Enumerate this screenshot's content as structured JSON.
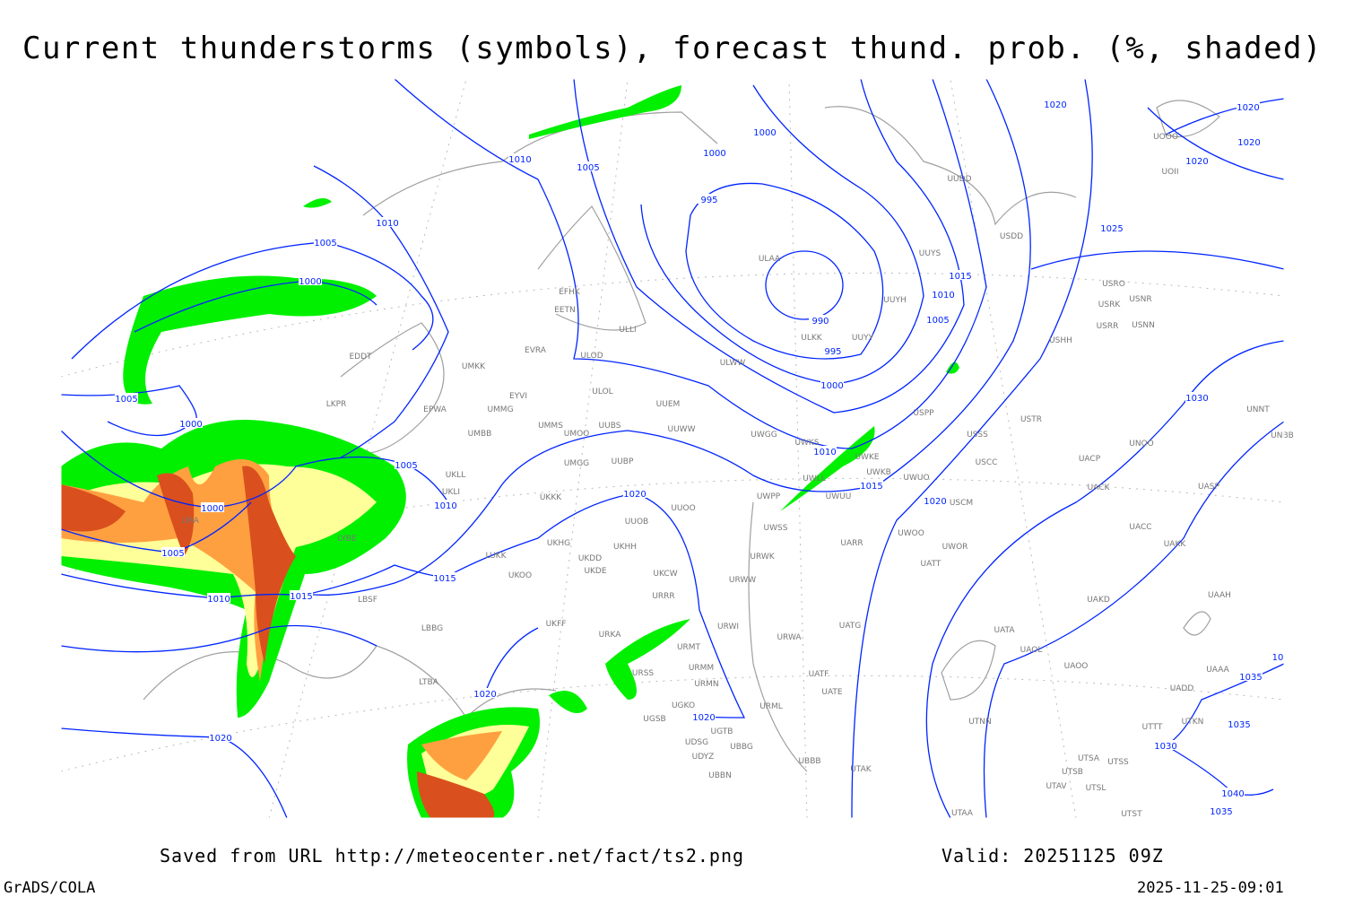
{
  "title": "Current thunderstorms (symbols), forecast thund. prob. (%, shaded)",
  "footer": {
    "source": "Saved from URL http://meteocenter.net/fact/ts2.png",
    "valid": "Valid: 20251125 09Z",
    "software": "GrADS/COLA",
    "timestamp": "2025-11-25-09:01"
  },
  "colors": {
    "isobar": "#0024ff",
    "coastline": "#a0a0a0",
    "prob_low": "#00f000",
    "prob_mid": "#ffff99",
    "prob_high": "#ffa040",
    "prob_max": "#d9501e"
  },
  "isobar_labels": [
    "1010",
    "1005",
    "1000",
    "1000",
    "995",
    "1020",
    "1020",
    "1020",
    "1020",
    "1025",
    "1010",
    "1005",
    "1000",
    "1005",
    "1000",
    "1005",
    "1010",
    "990",
    "995",
    "1000",
    "1015",
    "1010",
    "1005",
    "1010",
    "1015",
    "1020",
    "1030",
    "1000",
    "1005",
    "1010",
    "1015",
    "1015",
    "1020",
    "1020",
    "1020",
    "1020",
    "1035",
    "1035",
    "1030",
    "1040",
    "1035",
    "10"
  ],
  "stations": [
    "EFHK",
    "EETN",
    "ULLI",
    "EVRA",
    "ULOD",
    "UMKK",
    "EYVI",
    "ULOL",
    "UUEM",
    "EPWA",
    "UMMG",
    "LKPR",
    "EDDT",
    "UMMS",
    "UMOO",
    "UUBS",
    "UUWW",
    "UMBB",
    "UMGG",
    "UUBP",
    "UKLL",
    "UKLI",
    "UKKK",
    "UUOO",
    "UUOB",
    "UKHG",
    "UKDD",
    "UKHH",
    "UKDE",
    "UKOO",
    "UKCW",
    "LUKK",
    "URRR",
    "UKFF",
    "URKA",
    "URMT",
    "URSS",
    "URMM",
    "URMN",
    "UGKO",
    "UGSB",
    "UGTB",
    "UBBG",
    "UDSG",
    "UDYZ",
    "UBBN",
    "UBBB",
    "UTAK",
    "URML",
    "UATE",
    "UATF",
    "URWA",
    "UATG",
    "URWI",
    "URWW",
    "URWK",
    "UWSS",
    "UWPP",
    "UWUU",
    "UWLL",
    "UARR",
    "UWKB",
    "UWUO",
    "UWKE",
    "UWKS",
    "UWGG",
    "UWOO",
    "UWOR",
    "UATT",
    "USCM",
    "USCC",
    "USSS",
    "USTR",
    "USPP",
    "UUYY",
    "ULKK",
    "ULWW",
    "UUYH",
    "UUYS",
    "ULAA",
    "UUDD",
    "USDD",
    "USRR",
    "USRK",
    "USRO",
    "USNR",
    "USNN",
    "USHH",
    "UOOO",
    "UOII",
    "UNNT",
    "UNBB",
    "UNOO",
    "UACP",
    "UACK",
    "UASP",
    "UACC",
    "UAKK",
    "UAKD",
    "UAAH",
    "UATA",
    "UAOL",
    "UAOO",
    "UAAA",
    "UADD",
    "UTTT",
    "UTKN",
    "UTNN",
    "UTSA",
    "UTSB",
    "UTSS",
    "UTAV",
    "UTSL",
    "UTST",
    "UTAA",
    "LYBE",
    "LBSF",
    "LBBG",
    "LTBA",
    "LIRA"
  ]
}
